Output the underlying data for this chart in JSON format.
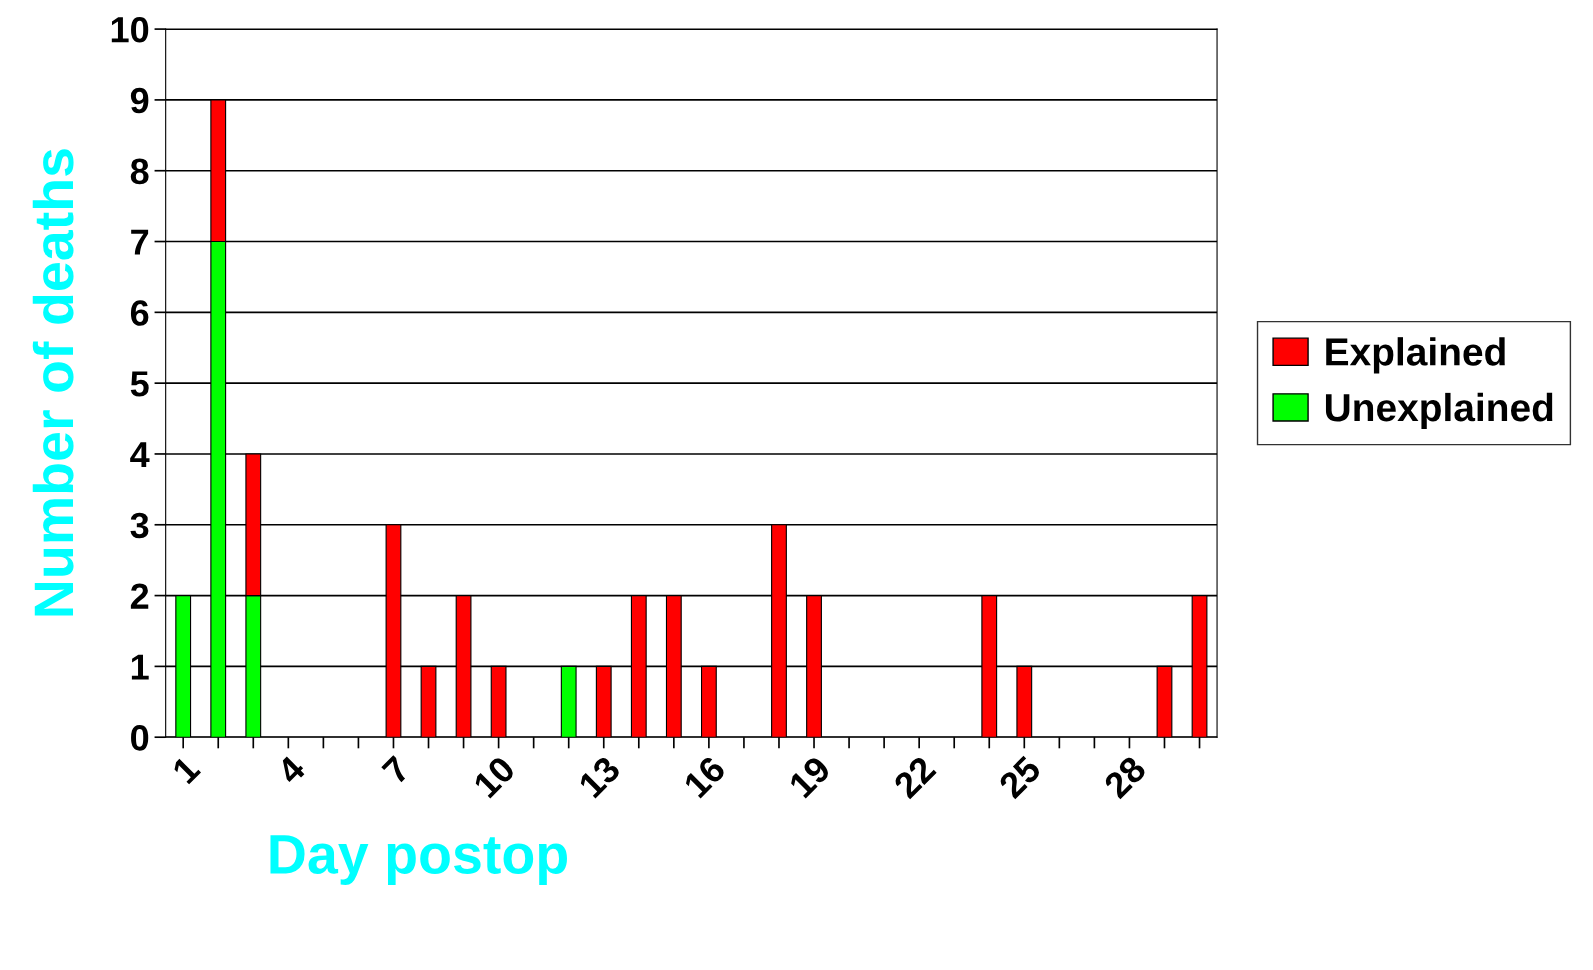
{
  "chart_data": {
    "type": "bar",
    "stacked": true,
    "xlabel": "Day postop",
    "ylabel": "Number of deaths",
    "categories": [
      "1",
      null,
      null,
      "4",
      null,
      null,
      "7",
      null,
      null,
      "10",
      null,
      null,
      "13",
      null,
      null,
      "16",
      null,
      null,
      "19",
      null,
      null,
      "22",
      null,
      null,
      "25",
      null,
      null,
      "28",
      null,
      null
    ],
    "series": [
      {
        "name": "Unexplained",
        "color": "#00ff00",
        "values": [
          2,
          7,
          2,
          0,
          0,
          0,
          0,
          0,
          0,
          0,
          0,
          1,
          0,
          0,
          0,
          0,
          0,
          0,
          0,
          0,
          0,
          0,
          0,
          0,
          0,
          0,
          0,
          0,
          0,
          0
        ]
      },
      {
        "name": "Explained",
        "color": "#ff0000",
        "values": [
          0,
          2,
          2,
          0,
          0,
          0,
          3,
          1,
          2,
          1,
          0,
          0,
          1,
          2,
          2,
          1,
          0,
          3,
          2,
          0,
          0,
          0,
          0,
          2,
          1,
          0,
          0,
          0,
          1,
          2
        ]
      }
    ],
    "ylim": [
      0,
      10
    ],
    "yticks": [
      0,
      1,
      2,
      3,
      4,
      5,
      6,
      7,
      8,
      9,
      10
    ],
    "grid": "y",
    "legend": "right"
  }
}
